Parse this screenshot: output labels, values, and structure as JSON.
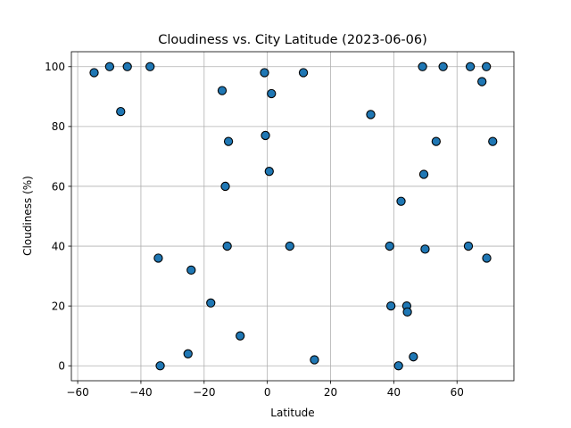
{
  "chart_data": {
    "type": "scatter",
    "title": "Cloudiness vs. City Latitude (2023-06-06)",
    "xlabel": "Latitude",
    "ylabel": "Cloudiness (%)",
    "xlim": [
      -62,
      78
    ],
    "ylim": [
      -5,
      105
    ],
    "xticks": [
      -60,
      -40,
      -20,
      0,
      20,
      40,
      60
    ],
    "yticks": [
      0,
      20,
      40,
      60,
      80,
      100
    ],
    "grid": true,
    "marker_color": "#1f77b4",
    "marker_edge_color": "#000000",
    "points": [
      {
        "x": -54.8,
        "y": 98
      },
      {
        "x": -49.9,
        "y": 100
      },
      {
        "x": -44.3,
        "y": 100
      },
      {
        "x": -46.4,
        "y": 85
      },
      {
        "x": -37.1,
        "y": 100
      },
      {
        "x": -34.5,
        "y": 36
      },
      {
        "x": -33.9,
        "y": 0
      },
      {
        "x": -24.1,
        "y": 32
      },
      {
        "x": -25.1,
        "y": 4
      },
      {
        "x": -17.9,
        "y": 21
      },
      {
        "x": -14.3,
        "y": 92
      },
      {
        "x": -12.3,
        "y": 75
      },
      {
        "x": -13.3,
        "y": 60
      },
      {
        "x": -12.7,
        "y": 40
      },
      {
        "x": -8.6,
        "y": 10
      },
      {
        "x": -0.9,
        "y": 98
      },
      {
        "x": 1.3,
        "y": 91
      },
      {
        "x": -0.6,
        "y": 77
      },
      {
        "x": 0.6,
        "y": 65
      },
      {
        "x": 7.1,
        "y": 40
      },
      {
        "x": 11.4,
        "y": 98
      },
      {
        "x": 14.9,
        "y": 2
      },
      {
        "x": 32.7,
        "y": 84
      },
      {
        "x": 38.7,
        "y": 40
      },
      {
        "x": 39.1,
        "y": 20
      },
      {
        "x": 41.5,
        "y": 0
      },
      {
        "x": 42.3,
        "y": 55
      },
      {
        "x": 44.1,
        "y": 20
      },
      {
        "x": 44.3,
        "y": 18
      },
      {
        "x": 46.2,
        "y": 3
      },
      {
        "x": 49.1,
        "y": 100
      },
      {
        "x": 49.5,
        "y": 64
      },
      {
        "x": 49.9,
        "y": 39
      },
      {
        "x": 53.4,
        "y": 75
      },
      {
        "x": 55.6,
        "y": 100
      },
      {
        "x": 63.6,
        "y": 40
      },
      {
        "x": 64.2,
        "y": 100
      },
      {
        "x": 67.9,
        "y": 95
      },
      {
        "x": 69.3,
        "y": 100
      },
      {
        "x": 69.4,
        "y": 36
      },
      {
        "x": 71.3,
        "y": 75
      }
    ]
  }
}
